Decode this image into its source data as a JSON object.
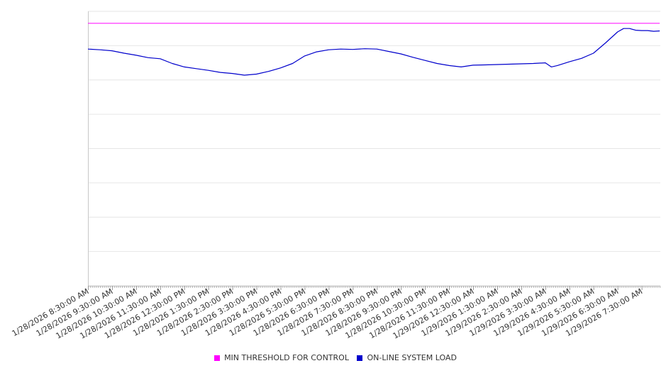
{
  "chart_data": {
    "type": "line",
    "title": "",
    "xlabel": "",
    "ylabel": "",
    "grid": true,
    "legend_position": "bottom-center",
    "ylim": [
      0,
      8
    ],
    "x_tick_labels": [
      "1/28/2026 8:30:00 AM",
      "1/28/2026 9:30:00 AM",
      "1/28/2026 10:30:00 AM",
      "1/28/2026 11:30:00 AM",
      "1/28/2026 12:30:00 PM",
      "1/28/2026 1:30:00 PM",
      "1/28/2026 2:30:00 PM",
      "1/28/2026 3:30:00 PM",
      "1/28/2026 4:30:00 PM",
      "1/28/2026 5:30:00 PM",
      "1/28/2026 6:30:00 PM",
      "1/28/2026 7:30:00 PM",
      "1/28/2026 8:30:00 PM",
      "1/28/2026 9:30:00 PM",
      "1/28/2026 10:30:00 PM",
      "1/28/2026 11:30:00 PM",
      "1/29/2026 12:30:00 AM",
      "1/29/2026 1:30:00 AM",
      "1/29/2026 2:30:00 AM",
      "1/29/2026 3:30:00 AM",
      "1/29/2026 4:30:00 AM",
      "1/29/2026 5:30:00 AM",
      "1/29/2026 6:30:00 AM",
      "1/29/2026 7:30:00 AM"
    ],
    "series": [
      {
        "name": "MIN THRESHOLD FOR CONTROL",
        "color": "#ff00ff",
        "x": [
          "1/28/2026 8:30:00 AM",
          "1/29/2026 8:15:00 AM"
        ],
        "values": [
          7.65,
          7.65
        ]
      },
      {
        "name": "ON-LINE SYSTEM LOAD",
        "color": "#0000cc",
        "x": [
          "1/28/2026 8:30:00 AM",
          "1/28/2026 9:00:00 AM",
          "1/28/2026 9:30:00 AM",
          "1/28/2026 10:00:00 AM",
          "1/28/2026 10:30:00 AM",
          "1/28/2026 11:00:00 AM",
          "1/28/2026 11:30:00 AM",
          "1/28/2026 12:00:00 PM",
          "1/28/2026 12:30:00 PM",
          "1/28/2026 1:00:00 PM",
          "1/28/2026 1:30:00 PM",
          "1/28/2026 2:00:00 PM",
          "1/28/2026 2:30:00 PM",
          "1/28/2026 3:00:00 PM",
          "1/28/2026 3:30:00 PM",
          "1/28/2026 4:00:00 PM",
          "1/28/2026 4:30:00 PM",
          "1/28/2026 5:00:00 PM",
          "1/28/2026 5:30:00 PM",
          "1/28/2026 6:00:00 PM",
          "1/28/2026 6:30:00 PM",
          "1/28/2026 7:00:00 PM",
          "1/28/2026 7:30:00 PM",
          "1/28/2026 8:00:00 PM",
          "1/28/2026 8:30:00 PM",
          "1/28/2026 9:00:00 PM",
          "1/28/2026 9:30:00 PM",
          "1/28/2026 10:00:00 PM",
          "1/28/2026 10:30:00 PM",
          "1/28/2026 11:00:00 PM",
          "1/28/2026 11:30:00 PM",
          "1/29/2026 12:00:00 AM",
          "1/29/2026 12:30:00 AM",
          "1/29/2026 1:00:00 AM",
          "1/29/2026 1:30:00 AM",
          "1/29/2026 2:00:00 AM",
          "1/29/2026 2:30:00 AM",
          "1/29/2026 3:00:00 AM",
          "1/29/2026 3:30:00 AM",
          "1/29/2026 3:45:00 AM",
          "1/29/2026 4:00:00 AM",
          "1/29/2026 4:30:00 AM",
          "1/29/2026 5:00:00 AM",
          "1/29/2026 5:30:00 AM",
          "1/29/2026 6:00:00 AM",
          "1/29/2026 6:30:00 AM",
          "1/29/2026 6:45:00 AM",
          "1/29/2026 7:00:00 AM",
          "1/29/2026 7:15:00 AM",
          "1/29/2026 7:30:00 AM",
          "1/29/2026 7:45:00 AM",
          "1/29/2026 8:00:00 AM",
          "1/29/2026 8:15:00 AM"
        ],
        "values": [
          6.9,
          6.88,
          6.85,
          6.78,
          6.72,
          6.65,
          6.62,
          6.48,
          6.38,
          6.33,
          6.28,
          6.22,
          6.19,
          6.14,
          6.17,
          6.25,
          6.35,
          6.48,
          6.7,
          6.82,
          6.88,
          6.9,
          6.89,
          6.91,
          6.9,
          6.83,
          6.76,
          6.66,
          6.57,
          6.48,
          6.42,
          6.38,
          6.43,
          6.44,
          6.45,
          6.46,
          6.47,
          6.48,
          6.5,
          6.38,
          6.42,
          6.53,
          6.63,
          6.78,
          7.08,
          7.4,
          7.5,
          7.5,
          7.45,
          7.44,
          7.44,
          7.42,
          7.43
        ]
      }
    ]
  }
}
